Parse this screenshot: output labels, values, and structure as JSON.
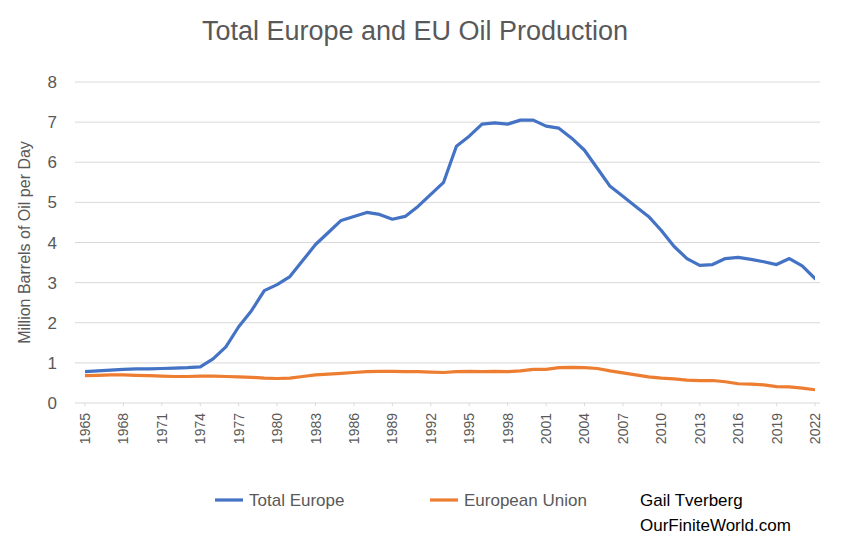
{
  "chart_data": {
    "type": "line",
    "title": "Total Europe and EU Oil Production",
    "y_label": "Million Barrels of Oil per Day",
    "annotations": [
      "Gail Tverberg",
      "OurFiniteWorld.com"
    ],
    "x": [
      1965,
      1966,
      1967,
      1968,
      1969,
      1970,
      1971,
      1972,
      1973,
      1974,
      1975,
      1976,
      1977,
      1978,
      1979,
      1980,
      1981,
      1982,
      1983,
      1984,
      1985,
      1986,
      1987,
      1988,
      1989,
      1990,
      1991,
      1992,
      1993,
      1994,
      1995,
      1996,
      1997,
      1998,
      1999,
      2000,
      2001,
      2002,
      2003,
      2004,
      2005,
      2006,
      2007,
      2008,
      2009,
      2010,
      2011,
      2012,
      2013,
      2014,
      2015,
      2016,
      2017,
      2018,
      2019,
      2020,
      2021,
      2022
    ],
    "series": [
      {
        "name": "Total Europe",
        "color": "#4472c4",
        "values": [
          0.78,
          0.8,
          0.82,
          0.84,
          0.85,
          0.85,
          0.86,
          0.87,
          0.88,
          0.9,
          1.1,
          1.4,
          1.9,
          2.3,
          2.8,
          2.95,
          3.15,
          3.55,
          3.95,
          4.25,
          4.55,
          4.65,
          4.75,
          4.7,
          4.58,
          4.65,
          4.9,
          5.2,
          5.5,
          6.4,
          6.65,
          6.95,
          6.98,
          6.95,
          7.05,
          7.05,
          6.9,
          6.85,
          6.6,
          6.3,
          5.85,
          5.4,
          5.15,
          4.9,
          4.65,
          4.3,
          3.9,
          3.6,
          3.43,
          3.45,
          3.6,
          3.63,
          3.58,
          3.52,
          3.45,
          3.6,
          3.42,
          3.1
        ]
      },
      {
        "name": "European Union",
        "color": "#ed7d31",
        "values": [
          0.68,
          0.69,
          0.7,
          0.7,
          0.69,
          0.68,
          0.67,
          0.66,
          0.66,
          0.67,
          0.67,
          0.66,
          0.65,
          0.64,
          0.62,
          0.61,
          0.62,
          0.66,
          0.7,
          0.72,
          0.74,
          0.76,
          0.78,
          0.79,
          0.79,
          0.78,
          0.78,
          0.77,
          0.76,
          0.78,
          0.79,
          0.78,
          0.79,
          0.78,
          0.8,
          0.84,
          0.84,
          0.88,
          0.89,
          0.88,
          0.86,
          0.8,
          0.75,
          0.7,
          0.65,
          0.62,
          0.6,
          0.57,
          0.56,
          0.56,
          0.53,
          0.48,
          0.47,
          0.45,
          0.41,
          0.4,
          0.37,
          0.33
        ]
      }
    ],
    "xlim": [
      1965,
      2022
    ],
    "xticks": [
      1965,
      1968,
      1971,
      1974,
      1977,
      1980,
      1983,
      1986,
      1989,
      1992,
      1995,
      1998,
      2001,
      2004,
      2007,
      2010,
      2013,
      2016,
      2019,
      2022
    ],
    "ylim": [
      0,
      8
    ],
    "yticks": [
      0,
      1,
      2,
      3,
      4,
      5,
      6,
      7,
      8
    ],
    "grid": true,
    "legend": "bottom"
  }
}
